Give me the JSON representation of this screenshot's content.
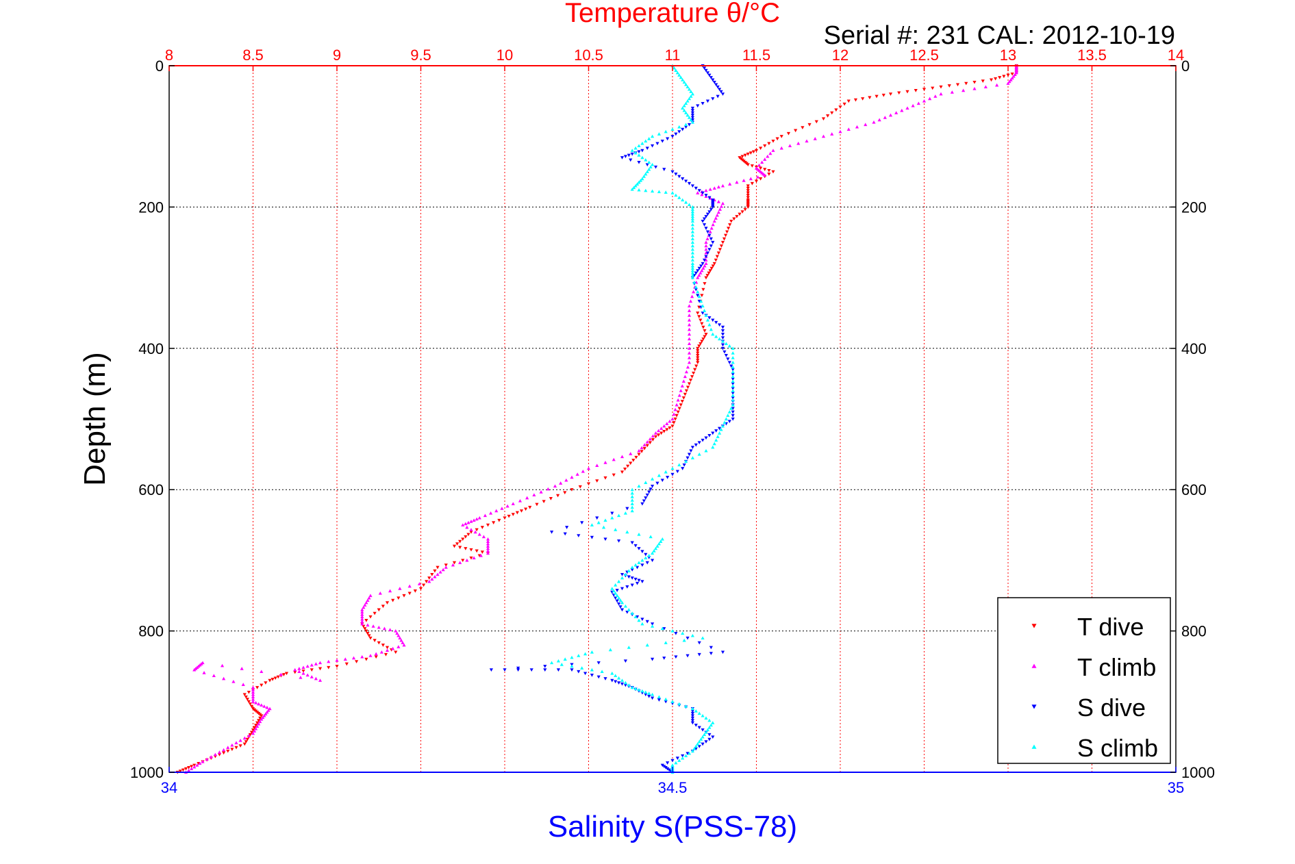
{
  "chart_data": {
    "type": "scatter",
    "title": "Temperature θ/°C",
    "subtitle": "Serial #: 231  CAL: 2012-10-19",
    "ylabel": "Depth (m)",
    "xlabel_bottom": "Salinity S(PSS-78)",
    "x_top": {
      "label": "Temperature θ/°C",
      "range": [
        8,
        14
      ],
      "ticks": [
        "8",
        "8.5",
        "9",
        "9.5",
        "10",
        "10.5",
        "11",
        "11.5",
        "12",
        "12.5",
        "13",
        "13.5",
        "14"
      ],
      "color": "#ff0000"
    },
    "x_bottom": {
      "label": "Salinity S(PSS-78)",
      "range": [
        34,
        35
      ],
      "ticks": [
        "34",
        "34.5",
        "35"
      ],
      "color": "#0000ff"
    },
    "y": {
      "range": [
        0,
        1000
      ],
      "reversed": true,
      "ticks": [
        "0",
        "200",
        "400",
        "600",
        "800",
        "1000"
      ]
    },
    "grid": true,
    "legend_position": "bottom-right",
    "series": [
      {
        "name": "T dive",
        "axis": "temperature",
        "color": "#ff0000",
        "marker": "triangle-down",
        "points": [
          [
            13.05,
            0
          ],
          [
            13.05,
            10
          ],
          [
            12.9,
            20
          ],
          [
            12.6,
            30
          ],
          [
            12.3,
            40
          ],
          [
            12.05,
            50
          ],
          [
            11.9,
            75
          ],
          [
            11.65,
            100
          ],
          [
            11.5,
            120
          ],
          [
            11.4,
            130
          ],
          [
            11.45,
            140
          ],
          [
            11.6,
            150
          ],
          [
            11.45,
            170
          ],
          [
            11.45,
            190
          ],
          [
            11.45,
            200
          ],
          [
            11.35,
            220
          ],
          [
            11.3,
            250
          ],
          [
            11.25,
            280
          ],
          [
            11.2,
            300
          ],
          [
            11.15,
            350
          ],
          [
            11.2,
            380
          ],
          [
            11.15,
            400
          ],
          [
            11.15,
            420
          ],
          [
            11.1,
            450
          ],
          [
            11.05,
            480
          ],
          [
            11.0,
            510
          ],
          [
            10.9,
            525
          ],
          [
            10.8,
            550
          ],
          [
            10.7,
            575
          ],
          [
            10.4,
            600
          ],
          [
            10.15,
            625
          ],
          [
            10.0,
            640
          ],
          [
            9.8,
            660
          ],
          [
            9.7,
            680
          ],
          [
            9.9,
            690
          ],
          [
            9.6,
            710
          ],
          [
            9.5,
            740
          ],
          [
            9.3,
            760
          ],
          [
            9.15,
            790
          ],
          [
            9.2,
            810
          ],
          [
            9.35,
            830
          ],
          [
            9.0,
            850
          ],
          [
            8.7,
            860
          ],
          [
            8.6,
            870
          ],
          [
            8.45,
            890
          ],
          [
            8.5,
            910
          ],
          [
            8.55,
            920
          ],
          [
            8.5,
            940
          ],
          [
            8.45,
            960
          ],
          [
            8.3,
            975
          ],
          [
            8.15,
            990
          ],
          [
            8.05,
            1000
          ]
        ]
      },
      {
        "name": "T climb",
        "axis": "temperature",
        "color": "#ff00ff",
        "marker": "triangle-up",
        "points": [
          [
            13.05,
            0
          ],
          [
            13.05,
            10
          ],
          [
            13.0,
            25
          ],
          [
            12.6,
            40
          ],
          [
            12.4,
            60
          ],
          [
            12.2,
            80
          ],
          [
            11.9,
            100
          ],
          [
            11.6,
            120
          ],
          [
            11.5,
            145
          ],
          [
            11.55,
            155
          ],
          [
            11.3,
            170
          ],
          [
            11.15,
            180
          ],
          [
            11.3,
            195
          ],
          [
            11.25,
            220
          ],
          [
            11.2,
            250
          ],
          [
            11.2,
            280
          ],
          [
            11.15,
            300
          ],
          [
            11.1,
            340
          ],
          [
            11.1,
            380
          ],
          [
            11.1,
            420
          ],
          [
            11.05,
            460
          ],
          [
            11.0,
            500
          ],
          [
            10.9,
            520
          ],
          [
            10.8,
            545
          ],
          [
            10.5,
            570
          ],
          [
            10.3,
            595
          ],
          [
            10.05,
            620
          ],
          [
            9.85,
            640
          ],
          [
            9.75,
            650
          ],
          [
            9.9,
            670
          ],
          [
            9.9,
            690
          ],
          [
            9.65,
            710
          ],
          [
            9.55,
            730
          ],
          [
            9.2,
            750
          ],
          [
            9.15,
            770
          ],
          [
            9.15,
            790
          ],
          [
            9.35,
            800
          ],
          [
            9.4,
            820
          ],
          [
            9.2,
            835
          ],
          [
            8.9,
            845
          ],
          [
            8.75,
            855
          ],
          [
            8.9,
            870
          ],
          [
            8.2,
            845
          ],
          [
            8.15,
            855
          ],
          [
            8.5,
            880
          ],
          [
            8.5,
            900
          ],
          [
            8.6,
            910
          ],
          [
            8.55,
            925
          ],
          [
            8.5,
            945
          ],
          [
            8.35,
            965
          ],
          [
            8.2,
            985
          ],
          [
            8.1,
            1000
          ]
        ]
      },
      {
        "name": "S dive",
        "axis": "salinity",
        "color": "#0000ff",
        "marker": "triangle-down",
        "points": [
          [
            34.53,
            0
          ],
          [
            34.54,
            20
          ],
          [
            34.55,
            40
          ],
          [
            34.52,
            60
          ],
          [
            34.52,
            80
          ],
          [
            34.5,
            100
          ],
          [
            34.47,
            120
          ],
          [
            34.45,
            130
          ],
          [
            34.5,
            150
          ],
          [
            34.52,
            170
          ],
          [
            34.54,
            190
          ],
          [
            34.54,
            200
          ],
          [
            34.53,
            220
          ],
          [
            34.54,
            250
          ],
          [
            34.53,
            280
          ],
          [
            34.52,
            300
          ],
          [
            34.53,
            350
          ],
          [
            34.55,
            370
          ],
          [
            34.55,
            400
          ],
          [
            34.56,
            430
          ],
          [
            34.56,
            470
          ],
          [
            34.56,
            500
          ],
          [
            34.54,
            520
          ],
          [
            34.52,
            540
          ],
          [
            34.51,
            570
          ],
          [
            34.48,
            595
          ],
          [
            34.47,
            620
          ],
          [
            34.38,
            660
          ],
          [
            34.46,
            675
          ],
          [
            34.48,
            700
          ],
          [
            34.45,
            720
          ],
          [
            34.47,
            730
          ],
          [
            34.44,
            745
          ],
          [
            34.45,
            770
          ],
          [
            34.48,
            790
          ],
          [
            34.55,
            830
          ],
          [
            34.48,
            840
          ],
          [
            34.32,
            855
          ],
          [
            34.4,
            855
          ],
          [
            34.44,
            870
          ],
          [
            34.46,
            880
          ],
          [
            34.48,
            895
          ],
          [
            34.52,
            910
          ],
          [
            34.52,
            930
          ],
          [
            34.54,
            950
          ],
          [
            34.52,
            970
          ],
          [
            34.49,
            990
          ],
          [
            34.5,
            1000
          ]
        ]
      },
      {
        "name": "S climb",
        "axis": "salinity",
        "color": "#00ffff",
        "marker": "triangle-up",
        "points": [
          [
            34.5,
            0
          ],
          [
            34.51,
            20
          ],
          [
            34.52,
            40
          ],
          [
            34.51,
            60
          ],
          [
            34.52,
            80
          ],
          [
            34.48,
            100
          ],
          [
            34.46,
            120
          ],
          [
            34.48,
            140
          ],
          [
            34.47,
            160
          ],
          [
            34.46,
            175
          ],
          [
            34.5,
            180
          ],
          [
            34.52,
            200
          ],
          [
            34.52,
            220
          ],
          [
            34.52,
            250
          ],
          [
            34.52,
            280
          ],
          [
            34.52,
            300
          ],
          [
            34.53,
            340
          ],
          [
            34.54,
            380
          ],
          [
            34.56,
            400
          ],
          [
            34.56,
            440
          ],
          [
            34.56,
            480
          ],
          [
            34.55,
            510
          ],
          [
            34.54,
            540
          ],
          [
            34.5,
            570
          ],
          [
            34.46,
            600
          ],
          [
            34.46,
            630
          ],
          [
            34.42,
            650
          ],
          [
            34.49,
            670
          ],
          [
            34.48,
            690
          ],
          [
            34.46,
            710
          ],
          [
            34.44,
            740
          ],
          [
            34.45,
            760
          ],
          [
            34.47,
            790
          ],
          [
            34.53,
            810
          ],
          [
            34.42,
            830
          ],
          [
            34.38,
            845
          ],
          [
            34.44,
            860
          ],
          [
            34.46,
            880
          ],
          [
            34.48,
            890
          ],
          [
            34.52,
            910
          ],
          [
            34.54,
            930
          ],
          [
            34.53,
            950
          ],
          [
            34.52,
            970
          ],
          [
            34.5,
            990
          ],
          [
            34.5,
            1000
          ]
        ]
      }
    ]
  }
}
